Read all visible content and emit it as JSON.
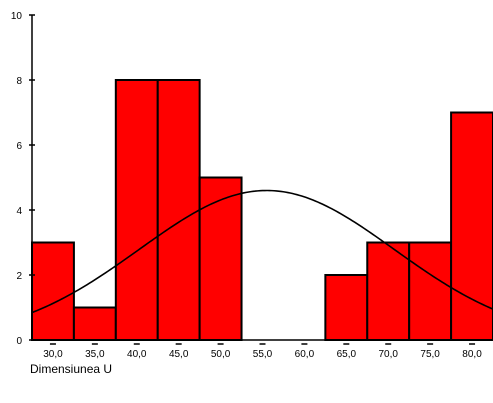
{
  "chart_data": {
    "type": "bar",
    "subtype": "histogram-with-normal-curve",
    "xlabel": "Dimensiunea U",
    "ylabel": "",
    "ylim": [
      0,
      10
    ],
    "yticks": [
      0,
      2,
      4,
      6,
      8,
      10
    ],
    "x_range": [
      27.5,
      82.5
    ],
    "bin_width": 5,
    "categories": [
      "30,0",
      "35,0",
      "40,0",
      "45,0",
      "50,0",
      "55,0",
      "60,0",
      "65,0",
      "70,0",
      "75,0",
      "80,0"
    ],
    "bin_centers": [
      30,
      35,
      40,
      45,
      50,
      55,
      60,
      65,
      70,
      75,
      80
    ],
    "values": [
      3,
      1,
      8,
      8,
      5,
      0,
      0,
      2,
      3,
      3,
      7
    ],
    "bar_color": "#ff0000",
    "bar_edge_color": "#000000",
    "normal_curve": {
      "mean": 55.5,
      "sd": 15.2,
      "peak": 4.6,
      "color": "#000000"
    },
    "grid": false,
    "legend": "none"
  }
}
